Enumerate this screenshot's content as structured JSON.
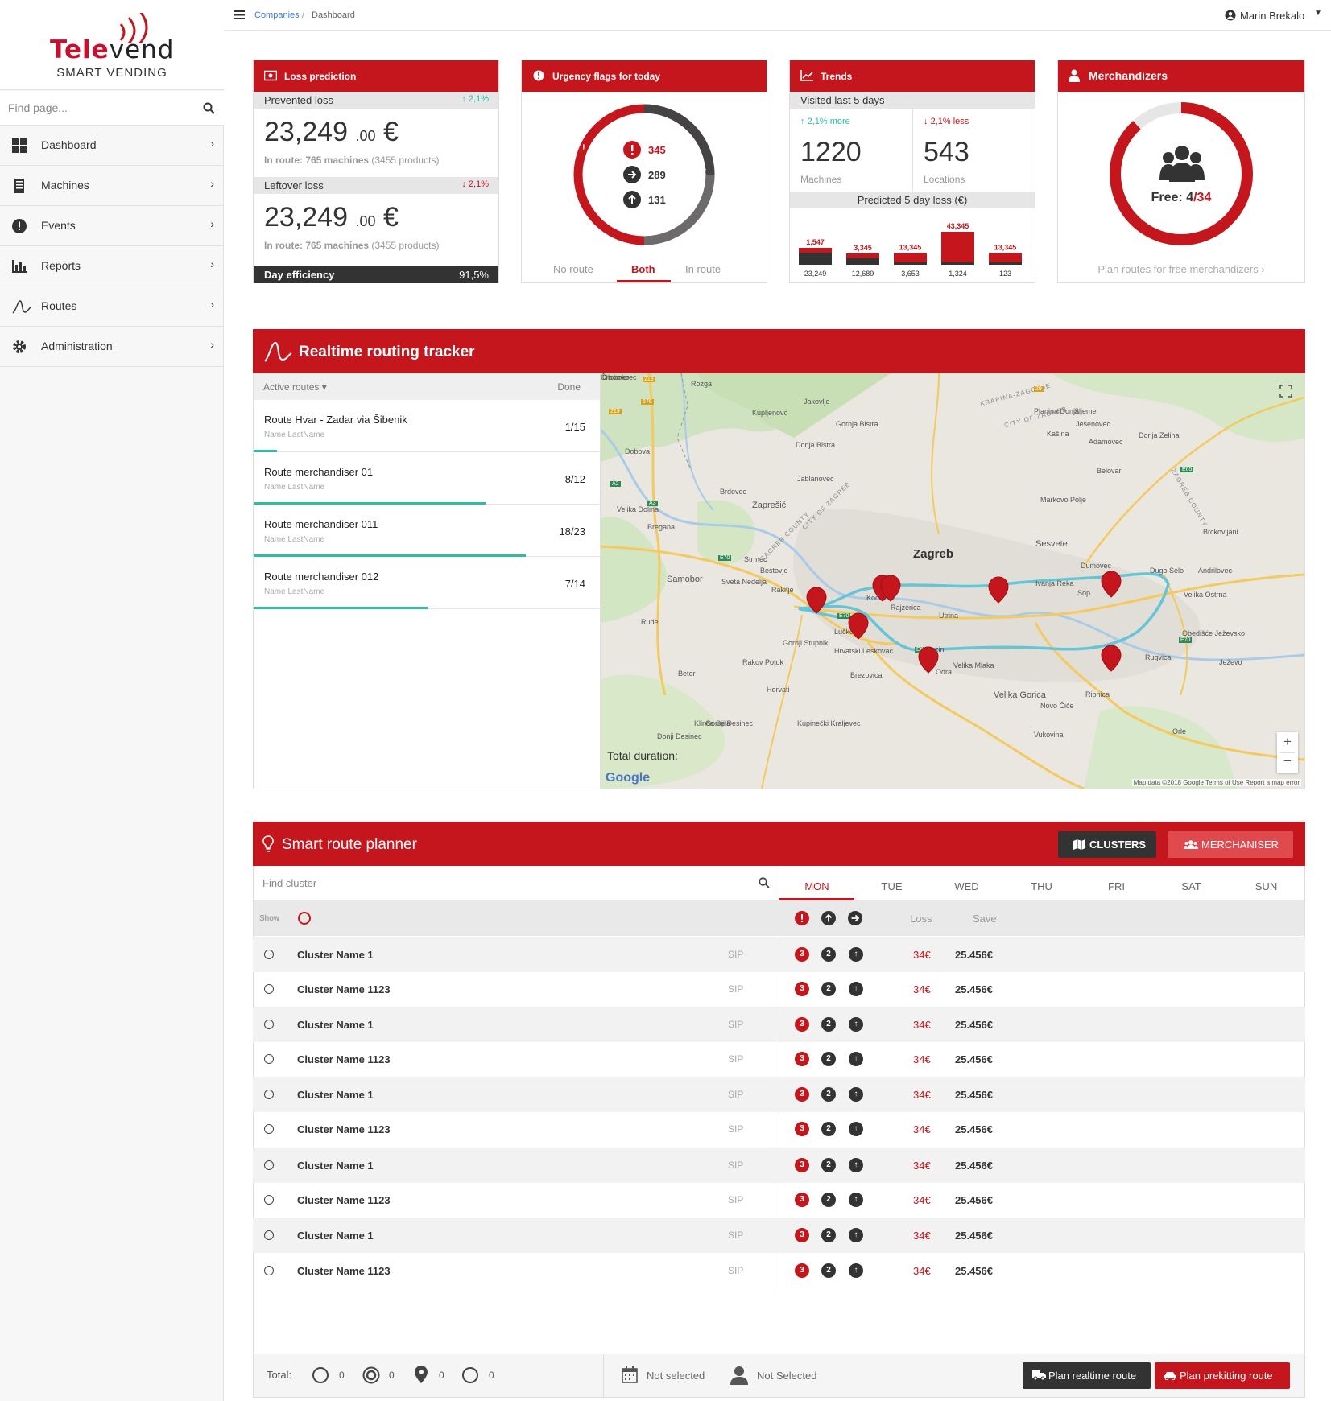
{
  "brand": {
    "name_a": "Tele",
    "name_b": "vend",
    "tagline": "SMART VENDING"
  },
  "search": {
    "placeholder": "Find page..."
  },
  "nav": [
    {
      "label": "Dashboard",
      "icon": "dashboard-icon"
    },
    {
      "label": "Machines",
      "icon": "machine-icon"
    },
    {
      "label": "Events",
      "icon": "alert-icon"
    },
    {
      "label": "Reports",
      "icon": "chart-icon"
    },
    {
      "label": "Routes",
      "icon": "route-icon"
    },
    {
      "label": "Administration",
      "icon": "gear-icon"
    }
  ],
  "topbar": {
    "crumb_1": "Companies",
    "crumb_sep": "/",
    "crumb_2": "Dashboard",
    "user": "Marin Brekalo"
  },
  "loss": {
    "title": "Loss prediction",
    "prevented_label": "Prevented loss",
    "prevented_change": "2,1%",
    "prevented_value": "23,249",
    "prevented_cents": ".00",
    "currency": "€",
    "prevented_route": "In route: 765 machines",
    "prevented_products": "(3455 products)",
    "leftover_label": "Leftover loss",
    "leftover_change": "2,1%",
    "leftover_value": "23,249",
    "leftover_cents": ".00",
    "leftover_route": "In route: 765 machines",
    "leftover_products": "(3455 products)",
    "efficiency_label": "Day efficiency",
    "efficiency_value": "91,5%"
  },
  "urgency": {
    "title": "Urgency flags for today",
    "critical": "345",
    "next": "289",
    "up": "131",
    "tabs": [
      "No route",
      "Both",
      "In route"
    ],
    "active_tab": "Both"
  },
  "trends": {
    "title": "Trends",
    "visited_label": "Visited last 5 days",
    "machines_change": "2,1% more",
    "machines_value": "1220",
    "machines_label": "Machines",
    "locations_change": "2,1% less",
    "locations_value": "543",
    "locations_label": "Locations",
    "predicted_label": "Predicted 5 day loss (€)"
  },
  "merch": {
    "title": "Merchandizers",
    "free_label": "Free: ",
    "free_value": "4",
    "free_total": "/34",
    "link": "Plan routes for free merchandizers ›"
  },
  "tracker": {
    "title": "Realtime routing tracker",
    "active_routes": "Active routes ▾",
    "done_label": "Done",
    "routes": [
      {
        "name": "Route Hvar - Zadar via Šibenik",
        "person": "Name LastName",
        "done": "1/15",
        "progress": 0.067
      },
      {
        "name": "Route merchandiser 01",
        "person": "Name LastName",
        "done": "8/12",
        "progress": 0.667
      },
      {
        "name": "Route merchandiser 011",
        "person": "Name LastName",
        "done": "18/23",
        "progress": 0.783
      },
      {
        "name": "Route merchandiser 012",
        "person": "Name LastName",
        "done": "7/14",
        "progress": 0.5
      }
    ],
    "map": {
      "total_duration": "Total duration:",
      "google": "Google",
      "attribution": "Map data ©2018 Google   Terms of Use   Report a map error",
      "zoom_in": "+",
      "zoom_out": "−",
      "places": [
        "Zagreb",
        "Zaprešić",
        "Samobor",
        "Sesvete",
        "Velika Gorica",
        "Bestovje",
        "Sveta Nedelja",
        "Rakitje",
        "Jakovlje",
        "Kupljenovo",
        "Gornja Bistra",
        "Donja Bistra",
        "Jablanovec",
        "Brdovec",
        "Strmec",
        "Kočići",
        "Lučko",
        "Hrvatski Leskovac",
        "Gornji Stupnik",
        "Rakov Potok",
        "Beter",
        "Rude",
        "Horvati",
        "Brezovica",
        "Odra",
        "Buzin",
        "Velika Mlaka",
        "Dumovec",
        "Sop",
        "Ivanja Reka",
        "Dugo Selo",
        "Andrilovec",
        "Velika Ostrna",
        "Obedišće Ježevsko",
        "Rugvica",
        "Ježevo",
        "Ribnica",
        "Novo Čiče",
        "Vukovina",
        "Orle",
        "Markovo Polje",
        "Belovar",
        "Kašina",
        "Planina Donja",
        "Jesenovec",
        "Adamovec",
        "Donja Zelina",
        "Sljeme",
        "Brckovljani",
        "Velika Dolina",
        "Bregana",
        "Dobova",
        "Rozga",
        "Kupinečki Kraljevec",
        "Donji Desinec",
        "Gornji Desinec",
        "Klinča Sela",
        "Globoko",
        "Rajzerica",
        "Utrina",
        "Črnomerec"
      ],
      "region_labels": [
        "ZAGREB COUNTY",
        "CITY OF ZAGREB",
        "KRAPINA-ZAGORJE",
        "CITY OF ZAGREB",
        "ZAGREB COUNTY"
      ],
      "road_labels": [
        "219",
        "219",
        "676",
        "A2",
        "A3",
        "E70",
        "E70",
        "E65",
        "E65",
        "E70",
        "29"
      ]
    }
  },
  "planner": {
    "title": "Smart route planner",
    "clusters_btn": "CLUSTERS",
    "merch_btn": "MERCHANISER",
    "find": "Find cluster",
    "show": "Show",
    "days": [
      "MON",
      "TUE",
      "WED",
      "THU",
      "FRI",
      "SAT",
      "SUN"
    ],
    "active_day": "MON",
    "loss_label": "Loss",
    "save_label": "Save",
    "rows": [
      {
        "name": "Cluster Name 1",
        "sip": "SIP",
        "b1": "3",
        "b2": "2",
        "loss": "34€",
        "save": "25.456€"
      },
      {
        "name": "Cluster Name 1123",
        "sip": "SIP",
        "b1": "3",
        "b2": "2",
        "loss": "34€",
        "save": "25.456€"
      },
      {
        "name": "Cluster Name 1",
        "sip": "SIP",
        "b1": "3",
        "b2": "2",
        "loss": "34€",
        "save": "25.456€"
      },
      {
        "name": "Cluster Name 1123",
        "sip": "SIP",
        "b1": "3",
        "b2": "2",
        "loss": "34€",
        "save": "25.456€"
      },
      {
        "name": "Cluster Name 1",
        "sip": "SIP",
        "b1": "3",
        "b2": "2",
        "loss": "34€",
        "save": "25.456€"
      },
      {
        "name": "Cluster Name 1123",
        "sip": "SIP",
        "b1": "3",
        "b2": "2",
        "loss": "34€",
        "save": "25.456€"
      },
      {
        "name": "Cluster Name 1",
        "sip": "SIP",
        "b1": "3",
        "b2": "2",
        "loss": "34€",
        "save": "25.456€"
      },
      {
        "name": "Cluster Name 1123",
        "sip": "SIP",
        "b1": "3",
        "b2": "2",
        "loss": "34€",
        "save": "25.456€"
      },
      {
        "name": "Cluster Name 1",
        "sip": "SIP",
        "b1": "3",
        "b2": "2",
        "loss": "34€",
        "save": "25.456€"
      },
      {
        "name": "Cluster Name 1123",
        "sip": "SIP",
        "b1": "3",
        "b2": "2",
        "loss": "34€",
        "save": "25.456€"
      }
    ],
    "footer": {
      "total": "Total:",
      "c1": "0",
      "c2": "0",
      "c3": "0",
      "c4": "0",
      "date": "Not selected",
      "person": "Not Selected",
      "btn_realtime": "Plan realtime route",
      "btn_prekitting": "Plan prekitting route"
    }
  },
  "colors": {
    "brand_red": "#c4161c",
    "teal": "#2bbf9f",
    "dark": "#333333"
  },
  "chart_data": {
    "type": "bar",
    "title": "Predicted 5 day loss (€)",
    "categories": [
      "1",
      "2",
      "3",
      "4",
      "5"
    ],
    "series": [
      {
        "values": [
          1547,
          3345,
          13345,
          43345,
          13345
        ]
      },
      {
        "values": [
          23249,
          12689,
          3653,
          1324,
          123
        ]
      }
    ],
    "top_labels": [
      "1,547",
      "3,345",
      "13,345",
      "43,345",
      "13,345"
    ],
    "bottom_labels": [
      "23,249",
      "12,689",
      "3,653",
      "1,324",
      "123"
    ]
  }
}
